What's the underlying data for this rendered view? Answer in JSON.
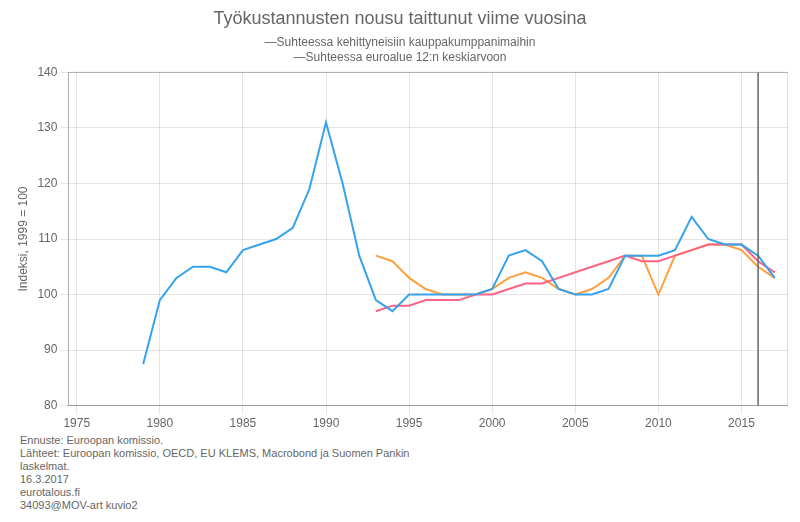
{
  "chart_data": {
    "type": "line",
    "title": "Työkustannusten nousu taittunut viime vuosina",
    "annotations": [
      "—Suhteessa kehittyneisiin kauppakumppanimaihin",
      "—Suhteessa euroalue 12:n keskiarvoon"
    ],
    "ylabel": "Indeksi, 1999 = 100",
    "footer": [
      "Ennuste: Euroopan komissio.",
      "Lähteet: Euroopan komissio, OECD, EU KLEMS, Macrobond ja Suomen Pankin",
      "laskelmat.",
      "16.3.2017",
      "eurotalous.fi",
      "34093@MOV-art kuvio2"
    ],
    "xlim": [
      1974.5,
      2017.8
    ],
    "xticks": [
      1975,
      1980,
      1985,
      1990,
      1995,
      2000,
      2005,
      2010,
      2015
    ],
    "ylim": [
      80,
      140
    ],
    "yticks": [
      80,
      90,
      100,
      110,
      120,
      130,
      140
    ],
    "grid": true,
    "vline": 2016,
    "series": [
      {
        "x": [
          1979,
          1980,
          1981,
          1982,
          1983,
          1984,
          1985,
          1986,
          1987,
          1988,
          1989,
          1990,
          1991,
          1992,
          1993,
          1994,
          1995,
          1996,
          1997,
          1998,
          1999,
          2000,
          2001,
          2002,
          2003,
          2004,
          2005,
          2006,
          2007,
          2008,
          2009,
          2010,
          2011,
          2012,
          2013,
          2014,
          2015,
          2016,
          2017
        ],
        "values": [
          87.5,
          99,
          103,
          105,
          105,
          104,
          108,
          109,
          110,
          112,
          119,
          131,
          120,
          107,
          99,
          97,
          100,
          100,
          100,
          100,
          100,
          101,
          107,
          108,
          106,
          101,
          100,
          100,
          101,
          107,
          107,
          107,
          108,
          114,
          110,
          109,
          109,
          107,
          103
        ]
      },
      {
        "x": [
          1993,
          1994,
          1995,
          1996,
          1997,
          1998,
          1999,
          2000,
          2001,
          2002,
          2003,
          2004,
          2005,
          2006,
          2007,
          2008,
          2009,
          2010,
          2011,
          2012,
          2013,
          2014,
          2015,
          2016,
          2017
        ],
        "values": [
          97,
          98,
          98,
          99,
          99,
          99,
          100,
          100,
          101,
          102,
          102,
          103,
          104,
          105,
          106,
          107,
          106,
          106,
          107,
          108,
          109,
          109,
          109,
          106,
          104
        ]
      },
      {
        "x": [
          1993,
          1994,
          1995,
          1996,
          1997,
          1998,
          1999,
          2000,
          2001,
          2002,
          2003,
          2004,
          2005,
          2006,
          2007,
          2008,
          2009,
          2010,
          2011,
          2012,
          2013,
          2014,
          2015,
          2016,
          2017
        ],
        "values": [
          107,
          106,
          103,
          101,
          100,
          100,
          100,
          101,
          103,
          104,
          103,
          101,
          100,
          101,
          103,
          107,
          107,
          100,
          107,
          108,
          109,
          109,
          108,
          105,
          103
        ]
      }
    ]
  }
}
